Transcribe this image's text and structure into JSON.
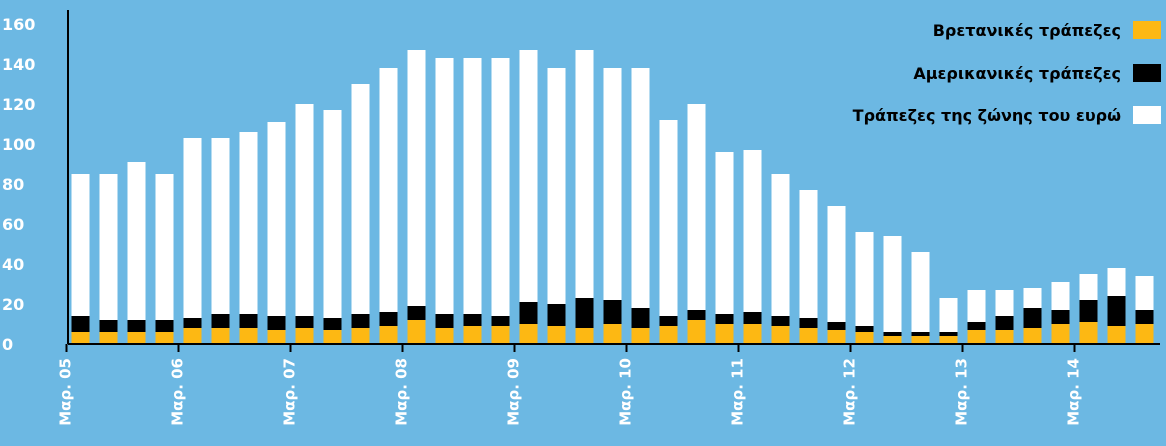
{
  "chart_data": {
    "type": "bar",
    "stacked": true,
    "ylim": [
      0,
      160
    ],
    "yticks": [
      0,
      20,
      40,
      60,
      80,
      100,
      120,
      140,
      160
    ],
    "x_tick_labels": [
      "Μαρ. 05",
      "Μαρ. 06",
      "Μαρ. 07",
      "Μαρ. 08",
      "Μαρ. 09",
      "Μαρ. 10",
      "Μαρ. 11",
      "Μαρ. 12",
      "Μαρ. 13",
      "Μαρ. 14"
    ],
    "x_tick_every": 4,
    "legend_position": "top-right",
    "grid": false,
    "series": [
      {
        "name": "Βρετανικές τράπεζες",
        "color": "#fdb813",
        "values": [
          6,
          6,
          6,
          6,
          8,
          8,
          8,
          7,
          8,
          7,
          8,
          9,
          12,
          8,
          9,
          9,
          10,
          9,
          8,
          10,
          8,
          9,
          12,
          10,
          10,
          9,
          8,
          7,
          6,
          4,
          4,
          4,
          7,
          7,
          8,
          10,
          11,
          9,
          10
        ]
      },
      {
        "name": "Αμερικανικές τράπεζες",
        "color": "#000000",
        "values": [
          8,
          6,
          6,
          6,
          5,
          7,
          7,
          7,
          6,
          6,
          7,
          7,
          7,
          7,
          6,
          5,
          11,
          11,
          15,
          12,
          10,
          5,
          5,
          5,
          6,
          5,
          5,
          4,
          3,
          2,
          2,
          2,
          4,
          7,
          10,
          7,
          11,
          15,
          7
        ]
      },
      {
        "name": "Τράπεζες της ζώνης του ευρώ",
        "color": "#ffffff",
        "values": [
          71,
          73,
          79,
          73,
          90,
          88,
          91,
          97,
          106,
          104,
          115,
          122,
          128,
          128,
          128,
          129,
          126,
          118,
          124,
          116,
          120,
          98,
          103,
          81,
          81,
          71,
          64,
          58,
          47,
          48,
          40,
          17,
          16,
          13,
          10,
          14,
          13,
          14,
          17
        ]
      }
    ]
  }
}
